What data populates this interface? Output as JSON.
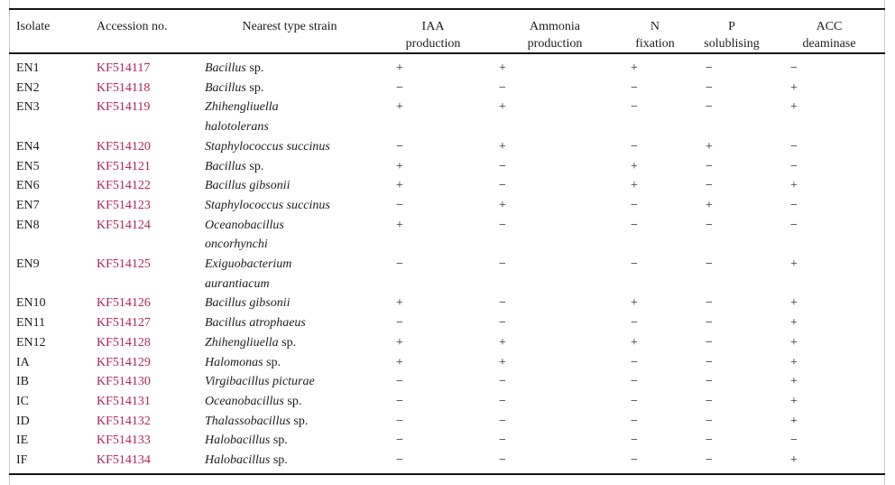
{
  "figure": {
    "kind": "journal-table",
    "description_visible": false
  },
  "colors": {
    "text": "#1c1c1c",
    "accession_link": "#b0245a",
    "rule": "#161616",
    "frame_line": "#c9c9c9",
    "background": "#ffffff"
  },
  "table": {
    "headers": {
      "isolate": "Isolate",
      "accession": "Accession no.",
      "strain": "Nearest type strain",
      "value_columns": [
        {
          "line1": "IAA",
          "line2": "production"
        },
        {
          "line1": "Ammonia",
          "line2": "production"
        },
        {
          "line1": "N",
          "line2": "fixation"
        },
        {
          "line1": "P",
          "line2": "solublising"
        },
        {
          "line1": "ACC",
          "line2": "deaminase"
        }
      ]
    },
    "symbols": {
      "positive": "+",
      "negative": "−"
    },
    "rows": [
      {
        "isolate": "EN1",
        "accession": "KF514117",
        "strain_lines": [
          [
            {
              "text": "Bacillus",
              "italic": true
            },
            {
              "text": " sp.",
              "italic": false
            }
          ]
        ],
        "values": [
          "+",
          "+",
          "+",
          "−",
          "−"
        ]
      },
      {
        "isolate": "EN2",
        "accession": "KF514118",
        "strain_lines": [
          [
            {
              "text": "Bacillus",
              "italic": true
            },
            {
              "text": " sp.",
              "italic": false
            }
          ]
        ],
        "values": [
          "−",
          "−",
          "−",
          "−",
          "+"
        ]
      },
      {
        "isolate": "EN3",
        "accession": "KF514119",
        "strain_lines": [
          [
            {
              "text": "Zhihengliuella",
              "italic": true
            }
          ],
          [
            {
              "text": "halotolerans",
              "italic": true
            }
          ]
        ],
        "values": [
          "+",
          "+",
          "−",
          "−",
          "+"
        ]
      },
      {
        "isolate": "EN4",
        "accession": "KF514120",
        "strain_lines": [
          [
            {
              "text": "Staphylococcus succinus",
              "italic": true
            }
          ]
        ],
        "values": [
          "−",
          "+",
          "−",
          "+",
          "−"
        ]
      },
      {
        "isolate": "EN5",
        "accession": "KF514121",
        "strain_lines": [
          [
            {
              "text": "Bacillus",
              "italic": true
            },
            {
              "text": " sp.",
              "italic": false
            }
          ]
        ],
        "values": [
          "+",
          "−",
          "+",
          "−",
          "−"
        ]
      },
      {
        "isolate": "EN6",
        "accession": "KF514122",
        "strain_lines": [
          [
            {
              "text": "Bacillus gibsonii",
              "italic": true
            }
          ]
        ],
        "values": [
          "+",
          "−",
          "+",
          "−",
          "+"
        ]
      },
      {
        "isolate": "EN7",
        "accession": "KF514123",
        "strain_lines": [
          [
            {
              "text": "Staphylococcus succinus",
              "italic": true
            }
          ]
        ],
        "values": [
          "−",
          "+",
          "−",
          "+",
          "−"
        ]
      },
      {
        "isolate": "EN8",
        "accession": "KF514124",
        "strain_lines": [
          [
            {
              "text": "Oceanobacillus",
              "italic": true
            }
          ],
          [
            {
              "text": "oncorhynchi",
              "italic": true
            }
          ]
        ],
        "values": [
          "+",
          "−",
          "−",
          "−",
          "−"
        ]
      },
      {
        "isolate": "EN9",
        "accession": "KF514125",
        "strain_lines": [
          [
            {
              "text": "Exiguobacterium",
              "italic": true
            }
          ],
          [
            {
              "text": "aurantiacum",
              "italic": true
            }
          ]
        ],
        "values": [
          "−",
          "−",
          "−",
          "−",
          "+"
        ]
      },
      {
        "isolate": "EN10",
        "accession": "KF514126",
        "strain_lines": [
          [
            {
              "text": "Bacillus gibsonii",
              "italic": true
            }
          ]
        ],
        "values": [
          "+",
          "−",
          "+",
          "−",
          "+"
        ]
      },
      {
        "isolate": "EN11",
        "accession": "KF514127",
        "strain_lines": [
          [
            {
              "text": "Bacillus atrophaeus",
              "italic": true
            }
          ]
        ],
        "values": [
          "−",
          "−",
          "−",
          "−",
          "+"
        ]
      },
      {
        "isolate": "EN12",
        "accession": "KF514128",
        "strain_lines": [
          [
            {
              "text": "Zhihengliuella",
              "italic": true
            },
            {
              "text": " sp.",
              "italic": false
            }
          ]
        ],
        "values": [
          "+",
          "+",
          "+",
          "−",
          "+"
        ]
      },
      {
        "isolate": "IA",
        "accession": "KF514129",
        "strain_lines": [
          [
            {
              "text": "Halomonas",
              "italic": true
            },
            {
              "text": " sp.",
              "italic": false
            }
          ]
        ],
        "values": [
          "+",
          "+",
          "−",
          "−",
          "+"
        ]
      },
      {
        "isolate": "IB",
        "accession": "KF514130",
        "strain_lines": [
          [
            {
              "text": "Virgibacillus picturae",
              "italic": true
            }
          ]
        ],
        "values": [
          "−",
          "−",
          "−",
          "−",
          "+"
        ]
      },
      {
        "isolate": "IC",
        "accession": "KF514131",
        "strain_lines": [
          [
            {
              "text": "Oceanobacillus",
              "italic": true
            },
            {
              "text": " sp.",
              "italic": false
            }
          ]
        ],
        "values": [
          "−",
          "−",
          "−",
          "−",
          "+"
        ]
      },
      {
        "isolate": "ID",
        "accession": "KF514132",
        "strain_lines": [
          [
            {
              "text": "Thalassobacillus",
              "italic": true
            },
            {
              "text": " sp.",
              "italic": false
            }
          ]
        ],
        "values": [
          "−",
          "−",
          "−",
          "−",
          "+"
        ]
      },
      {
        "isolate": "IE",
        "accession": "KF514133",
        "strain_lines": [
          [
            {
              "text": "Halobacillus",
              "italic": true
            },
            {
              "text": " sp.",
              "italic": false
            }
          ]
        ],
        "values": [
          "−",
          "−",
          "−",
          "−",
          "−"
        ]
      },
      {
        "isolate": "IF",
        "accession": "KF514134",
        "strain_lines": [
          [
            {
              "text": "Halobacillus",
              "italic": true
            },
            {
              "text": " sp.",
              "italic": false
            }
          ]
        ],
        "values": [
          "−",
          "−",
          "−",
          "−",
          "+"
        ]
      }
    ]
  }
}
